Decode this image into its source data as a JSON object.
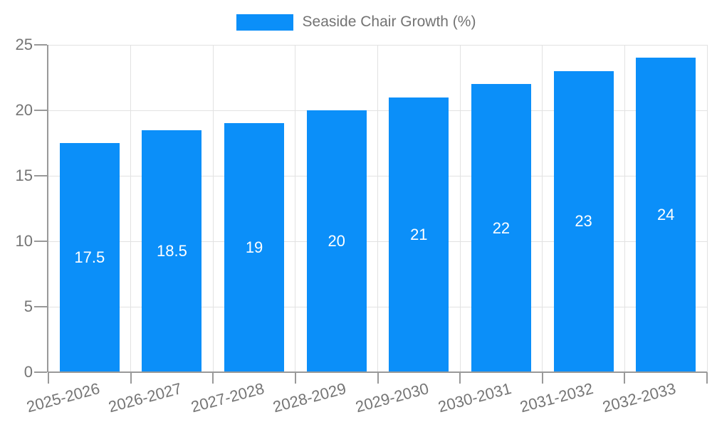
{
  "chart_data": {
    "type": "bar",
    "title": "Seaside Chair Growth (%)",
    "categories": [
      "2025-2026",
      "2026-2027",
      "2027-2028",
      "2028-2029",
      "2029-2030",
      "2030-2031",
      "2031-2032",
      "2032-2033"
    ],
    "series": [
      {
        "name": "Seaside Chair Growth (%)",
        "values": [
          17.5,
          18.5,
          19,
          20,
          21,
          22,
          23,
          24
        ],
        "bar_labels": [
          "17.5",
          "18.5",
          "19",
          "20",
          "21",
          "22",
          "23",
          "24"
        ]
      }
    ],
    "xlabel": "",
    "ylabel": "",
    "ylim": [
      0,
      25
    ],
    "yticks": [
      0,
      5,
      10,
      15,
      20,
      25
    ],
    "grid": true,
    "legend_position": "top-center",
    "x_label_rotation_deg": -15,
    "colors": {
      "bar": "#0b8ff9",
      "axis": "#999999",
      "gridline": "#e2e2e2",
      "axis_text": "#757575",
      "legend_text": "#737373",
      "bar_label_text": "#ffffff",
      "background": "#ffffff"
    }
  }
}
